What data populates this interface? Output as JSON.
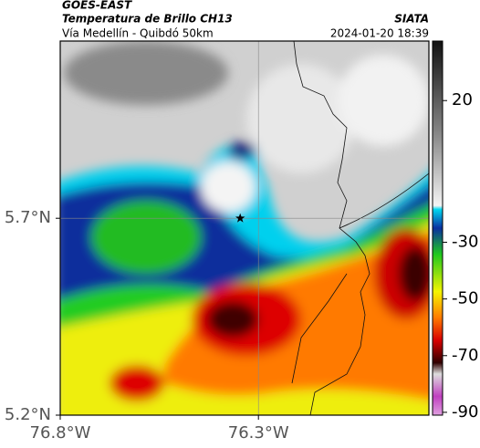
{
  "header": {
    "source": "GOES-EAST",
    "title": "Temperatura de Brillo CH13",
    "agency": "SIATA",
    "subtitle": "Vía Medellín - Quibdó 50km",
    "datetime": "2024-01-20 18:39"
  },
  "map": {
    "xlim": [
      -76.8,
      -75.87
    ],
    "ylim": [
      5.2,
      6.15
    ],
    "xticks": [
      {
        "value": -76.8,
        "label": "76.8°W"
      },
      {
        "value": -76.3,
        "label": "76.3°W"
      }
    ],
    "yticks": [
      {
        "value": 5.7,
        "label": "5.7°N"
      },
      {
        "value": 5.2,
        "label": "5.2°N"
      }
    ],
    "grid": true,
    "marker": {
      "lon": -76.346,
      "lat": 5.7
    }
  },
  "colorbar": {
    "clim": [
      -91,
      41
    ],
    "ticks": [
      20,
      -30,
      -50,
      -70,
      -90
    ]
  }
}
